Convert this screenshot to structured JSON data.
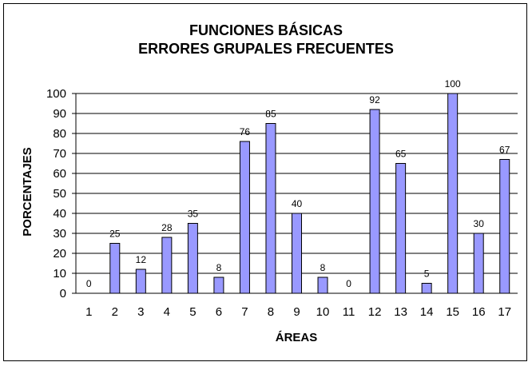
{
  "chart_data": {
    "type": "bar",
    "title_lines": [
      "FUNCIONES BÁSICAS",
      "ERRORES GRUPALES FRECUENTES"
    ],
    "xlabel": "ÁREAS",
    "ylabel": "PORCENTAJES",
    "categories": [
      "1",
      "2",
      "3",
      "4",
      "5",
      "6",
      "7",
      "8",
      "9",
      "10",
      "11",
      "12",
      "13",
      "14",
      "15",
      "16",
      "17"
    ],
    "values": [
      0,
      25,
      12,
      28,
      35,
      8,
      76,
      85,
      40,
      8,
      0,
      92,
      65,
      5,
      100,
      30,
      67
    ],
    "ylim": [
      0,
      100
    ],
    "yticks": [
      0,
      10,
      20,
      30,
      40,
      50,
      60,
      70,
      80,
      90,
      100
    ],
    "grid": true,
    "legend": "none",
    "bar_color": "#9999FF",
    "bar_stroke": "#000000"
  }
}
